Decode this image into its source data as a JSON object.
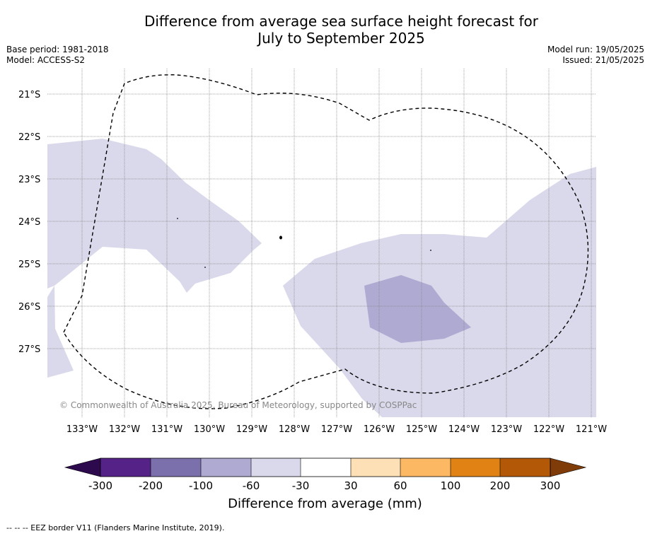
{
  "title_line1": "Difference from average sea surface height forecast for",
  "title_line2": "July to September 2025",
  "meta_left": {
    "base_period": "Base period: 1981-2018",
    "model": "Model: ACCESS-S2"
  },
  "meta_right": {
    "model_run": "Model run: 19/05/2025",
    "issued": "Issued: 21/05/2025"
  },
  "lat_labels": [
    "21°S",
    "22°S",
    "23°S",
    "24°S",
    "25°S",
    "26°S",
    "27°S"
  ],
  "lon_labels": [
    "133°W",
    "132°W",
    "131°W",
    "130°W",
    "129°W",
    "128°W",
    "127°W",
    "126°W",
    "125°W",
    "124°W",
    "123°W",
    "122°W",
    "121°W"
  ],
  "copyright": "© Commonwealth of Australia 2025, Bureau of Meteorology, supported by COSPPac",
  "colorbar": {
    "ticks": [
      "-300",
      "-200",
      "-100",
      "-60",
      "-30",
      "30",
      "60",
      "100",
      "200",
      "300"
    ],
    "colors": [
      "#552287",
      "#7b6fac",
      "#aeaad2",
      "#d9d9eb",
      "#ffffff",
      "#fee0b6",
      "#fdb863",
      "#e08214",
      "#b35806"
    ],
    "extend_low": "#2d0a4e",
    "extend_high": "#7f3b08",
    "label": "Difference from average (mm)"
  },
  "legend_footer": "--  --  -- EEZ border V11 (Flanders Marine Institute, 2019)."
}
